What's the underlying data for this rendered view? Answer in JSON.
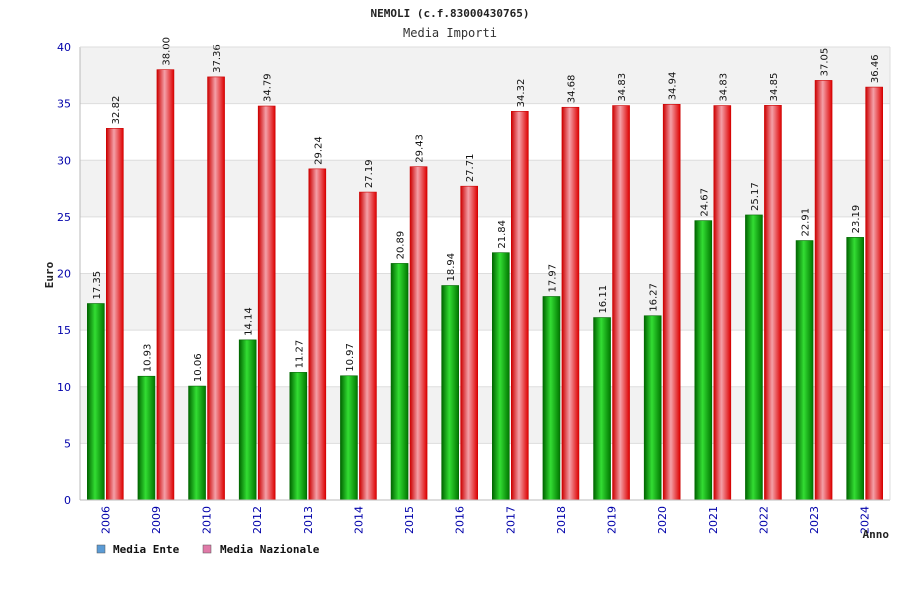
{
  "chart_data": {
    "type": "bar",
    "title": "NEMOLI (c.f.83000430765)",
    "subtitle": "Media Importi",
    "xlabel": "Anno",
    "ylabel": "Euro",
    "ylim": [
      0,
      40
    ],
    "yticks": [
      0,
      5,
      10,
      15,
      20,
      25,
      30,
      35,
      40
    ],
    "categories": [
      "2006",
      "2009",
      "2010",
      "2012",
      "2013",
      "2014",
      "2015",
      "2016",
      "2017",
      "2018",
      "2019",
      "2020",
      "2021",
      "2022",
      "2023",
      "2024"
    ],
    "series": [
      {
        "name": "Media Ente",
        "values": [
          17.35,
          10.93,
          10.06,
          14.14,
          11.27,
          10.97,
          20.89,
          18.94,
          21.84,
          17.97,
          16.11,
          16.27,
          24.67,
          25.17,
          22.91,
          23.19
        ],
        "labels": [
          "17.35",
          "10.93",
          "10.06",
          "14.14",
          "11.27",
          "10.97",
          "20.89",
          "18.94",
          "21.84",
          "17.97",
          "16.11",
          "16.27",
          "24.67",
          "25.17",
          "22.91",
          "23.19"
        ]
      },
      {
        "name": "Media Nazionale",
        "values": [
          32.82,
          38.0,
          37.36,
          34.79,
          29.24,
          27.19,
          29.43,
          27.71,
          34.32,
          34.68,
          34.83,
          34.94,
          34.83,
          34.85,
          37.05,
          36.46
        ],
        "labels": [
          "32.82",
          "38.00",
          "37.36",
          "34.79",
          "29.24",
          "27.19",
          "29.43",
          "27.71",
          "34.32",
          "34.68",
          "34.83",
          "34.94",
          "34.83",
          "34.85",
          "37.05",
          "36.46"
        ]
      }
    ],
    "legend": [
      {
        "name": "Media Ente",
        "color": "#5b9bd5"
      },
      {
        "name": "Media Nazionale",
        "color": "#e07aa8"
      }
    ],
    "legend_position": "bottom-left",
    "grid": true
  },
  "colors": {
    "ente_dark": "#006600",
    "ente_light": "#33dd33",
    "naz_dark": "#cc0000",
    "naz_light": "#f4a0a8",
    "axis_text": "#0000aa",
    "band": "#f2f2f2",
    "grid": "#dddddd"
  }
}
